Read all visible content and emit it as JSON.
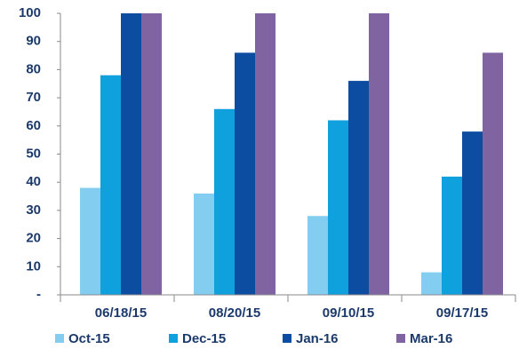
{
  "chart_data": {
    "type": "bar",
    "categories": [
      "06/18/15",
      "08/20/15",
      "09/10/15",
      "09/17/15"
    ],
    "series": [
      {
        "name": "Oct-15",
        "color": "#82cdf0",
        "values": [
          38,
          36,
          28,
          8
        ]
      },
      {
        "name": "Dec-15",
        "color": "#0fa0de",
        "values": [
          78,
          66,
          62,
          42
        ]
      },
      {
        "name": "Jan-16",
        "color": "#0c4da2",
        "values": [
          100,
          86,
          76,
          58
        ]
      },
      {
        "name": "Mar-16",
        "color": "#8064a2",
        "values": [
          100,
          100,
          100,
          86
        ]
      }
    ],
    "ylim": [
      0,
      100
    ],
    "yticks": [
      {
        "value": 0,
        "label": "-"
      },
      10,
      20,
      30,
      40,
      50,
      60,
      70,
      80,
      90,
      100
    ],
    "legend": "bottom"
  }
}
